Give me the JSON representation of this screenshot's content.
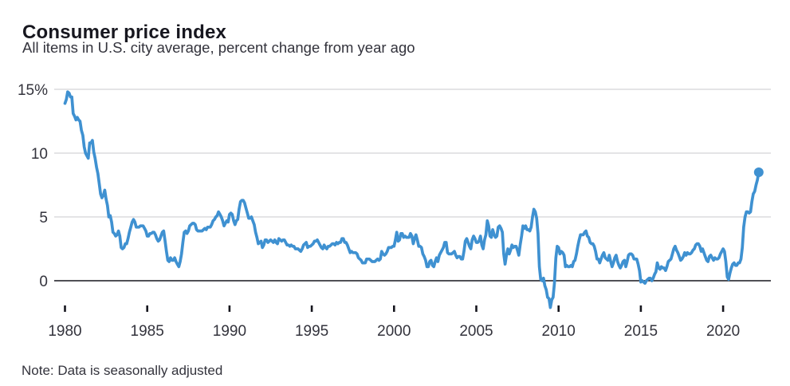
{
  "header": {
    "title": "Consumer price index",
    "subtitle": "All items in U.S. city average, percent change from year ago"
  },
  "footer": {
    "note": "Note: Data is seasonally adjusted"
  },
  "colors": {
    "line": "#3f91d1",
    "grid": "#d4d4d6",
    "zero_axis": "#16161e",
    "tick": "#16161e",
    "text_title": "#17171f",
    "text_body": "#33333c"
  },
  "chart_data": {
    "type": "line",
    "title": "Consumer price index",
    "subtitle": "All items in U.S. city average, percent change from year ago",
    "note": "Note: Data is seasonally adjusted",
    "unit": "percent change from year ago",
    "grid": true,
    "legend_position": "none",
    "x_range": [
      1980,
      2022.25
    ],
    "y_range": [
      -2.5,
      15
    ],
    "x_tick_years": [
      1980,
      1985,
      1990,
      1995,
      2000,
      2005,
      2010,
      2015,
      2020
    ],
    "y_ticks": [
      {
        "label": "15%",
        "value": 15
      },
      {
        "label": "10",
        "value": 10
      },
      {
        "label": "5",
        "value": 5
      },
      {
        "label": "0",
        "value": 0
      }
    ],
    "series_name": "CPI, all items, % change from year ago",
    "start_year": 1980,
    "frequency": "monthly",
    "latest_value": 8.5,
    "latest_marker": "dot",
    "values": [
      13.9,
      14.2,
      14.8,
      14.7,
      14.4,
      14.4,
      13.1,
      12.9,
      12.6,
      12.8,
      12.6,
      12.5,
      11.8,
      11.4,
      10.5,
      10.0,
      9.8,
      9.6,
      10.8,
      10.8,
      11.0,
      10.1,
      9.6,
      8.9,
      8.4,
      7.6,
      6.8,
      6.5,
      6.7,
      7.1,
      6.4,
      5.9,
      5.0,
      5.1,
      4.6,
      3.8,
      3.7,
      3.5,
      3.6,
      3.9,
      3.5,
      2.6,
      2.5,
      2.6,
      2.9,
      2.9,
      3.3,
      3.8,
      4.2,
      4.6,
      4.8,
      4.6,
      4.2,
      4.2,
      4.2,
      4.3,
      4.3,
      4.3,
      4.1,
      3.9,
      3.5,
      3.5,
      3.7,
      3.7,
      3.8,
      3.8,
      3.6,
      3.3,
      3.1,
      3.2,
      3.5,
      3.8,
      3.9,
      3.1,
      2.3,
      1.6,
      1.5,
      1.8,
      1.6,
      1.6,
      1.8,
      1.5,
      1.3,
      1.1,
      1.5,
      2.1,
      3.0,
      3.8,
      3.9,
      3.7,
      3.9,
      4.3,
      4.4,
      4.5,
      4.5,
      4.4,
      4.0,
      3.9,
      3.9,
      3.9,
      3.9,
      4.0,
      4.1,
      4.0,
      4.2,
      4.2,
      4.2,
      4.4,
      4.7,
      4.8,
      5.0,
      5.1,
      5.4,
      5.2,
      5.0,
      4.7,
      4.3,
      4.5,
      4.7,
      4.6,
      5.2,
      5.3,
      5.2,
      4.7,
      4.4,
      4.7,
      4.8,
      5.6,
      6.2,
      6.3,
      6.3,
      6.1,
      5.7,
      5.3,
      4.9,
      4.9,
      5.0,
      4.7,
      4.4,
      3.8,
      3.4,
      2.9,
      3.0,
      3.1,
      2.6,
      2.8,
      3.2,
      3.2,
      3.0,
      3.1,
      3.2,
      3.1,
      3.0,
      3.2,
      3.0,
      2.9,
      3.3,
      3.2,
      3.1,
      3.2,
      3.2,
      3.0,
      2.8,
      2.8,
      2.7,
      2.8,
      2.7,
      2.7,
      2.5,
      2.5,
      2.5,
      2.4,
      2.3,
      2.5,
      2.8,
      2.9,
      3.0,
      2.6,
      2.7,
      2.7,
      2.8,
      2.9,
      3.1,
      3.1,
      3.2,
      3.0,
      2.8,
      2.6,
      2.5,
      2.8,
      2.6,
      2.5,
      2.7,
      2.7,
      2.8,
      2.9,
      2.9,
      2.8,
      3.0,
      2.9,
      3.0,
      3.0,
      3.3,
      3.3,
      3.0,
      3.0,
      2.8,
      2.5,
      2.2,
      2.3,
      2.2,
      2.2,
      2.2,
      2.1,
      1.8,
      1.7,
      1.6,
      1.4,
      1.4,
      1.4,
      1.7,
      1.7,
      1.7,
      1.6,
      1.5,
      1.5,
      1.5,
      1.6,
      1.7,
      1.6,
      1.7,
      2.3,
      2.1,
      2.0,
      2.1,
      2.3,
      2.6,
      2.6,
      2.6,
      2.7,
      2.7,
      3.2,
      3.8,
      3.1,
      3.2,
      3.7,
      3.7,
      3.4,
      3.5,
      3.4,
      3.4,
      3.4,
      3.7,
      3.5,
      2.9,
      3.3,
      3.6,
      3.2,
      2.7,
      2.7,
      2.6,
      2.1,
      1.9,
      1.6,
      1.1,
      1.1,
      1.5,
      1.6,
      1.2,
      1.1,
      1.5,
      1.8,
      1.5,
      2.0,
      2.2,
      2.4,
      2.6,
      3.0,
      3.0,
      2.2,
      2.1,
      2.1,
      2.1,
      2.2,
      2.3,
      2.0,
      1.8,
      1.9,
      1.9,
      1.7,
      1.7,
      2.3,
      3.1,
      3.3,
      3.0,
      2.7,
      2.5,
      3.2,
      3.5,
      3.3,
      3.0,
      3.0,
      3.1,
      3.5,
      2.8,
      2.5,
      3.2,
      3.6,
      4.7,
      4.3,
      3.5,
      3.4,
      4.0,
      3.6,
      3.4,
      3.5,
      4.2,
      4.3,
      4.1,
      3.8,
      2.1,
      1.3,
      2.0,
      2.5,
      2.1,
      2.4,
      2.8,
      2.6,
      2.7,
      2.7,
      2.4,
      2.0,
      2.8,
      3.5,
      4.3,
      4.1,
      4.3,
      4.0,
      4.0,
      3.9,
      4.2,
      5.0,
      5.6,
      5.4,
      4.9,
      3.7,
      1.1,
      0.1,
      0.0,
      0.2,
      -0.4,
      -0.7,
      -1.3,
      -1.4,
      -2.1,
      -1.5,
      -1.3,
      -0.2,
      1.8,
      2.7,
      2.6,
      2.1,
      2.3,
      2.2,
      2.0,
      1.1,
      1.2,
      1.1,
      1.1,
      1.2,
      1.1,
      1.5,
      1.6,
      2.1,
      2.7,
      3.2,
      3.6,
      3.6,
      3.6,
      3.8,
      3.9,
      3.5,
      3.4,
      3.0,
      2.9,
      2.9,
      2.7,
      2.3,
      1.7,
      1.7,
      1.4,
      1.7,
      2.0,
      2.2,
      1.8,
      1.7,
      1.6,
      2.0,
      1.5,
      1.1,
      1.4,
      1.8,
      2.0,
      1.5,
      1.2,
      1.0,
      1.2,
      1.5,
      1.6,
      1.1,
      1.5,
      2.0,
      2.1,
      2.1,
      2.0,
      1.7,
      1.7,
      1.7,
      1.3,
      0.8,
      -0.1,
      0.0,
      -0.1,
      -0.2,
      0.0,
      0.1,
      0.2,
      0.2,
      0.0,
      0.2,
      0.5,
      0.7,
      1.4,
      1.0,
      0.9,
      1.1,
      1.0,
      1.0,
      0.8,
      1.1,
      1.5,
      1.6,
      1.7,
      2.1,
      2.5,
      2.7,
      2.4,
      2.2,
      1.9,
      1.6,
      1.7,
      1.9,
      2.2,
      2.0,
      2.2,
      2.1,
      2.1,
      2.2,
      2.4,
      2.5,
      2.8,
      2.9,
      2.9,
      2.7,
      2.3,
      2.5,
      2.2,
      1.9,
      1.6,
      1.5,
      1.9,
      2.0,
      1.8,
      1.6,
      1.8,
      1.7,
      1.7,
      1.8,
      2.1,
      2.3,
      2.5,
      2.3,
      1.5,
      0.3,
      0.1,
      0.6,
      1.0,
      1.3,
      1.4,
      1.2,
      1.2,
      1.4,
      1.4,
      1.7,
      2.6,
      4.2,
      5.0,
      5.4,
      5.4,
      5.3,
      5.4,
      6.2,
      6.8,
      7.0,
      7.5,
      7.9,
      8.5
    ]
  }
}
